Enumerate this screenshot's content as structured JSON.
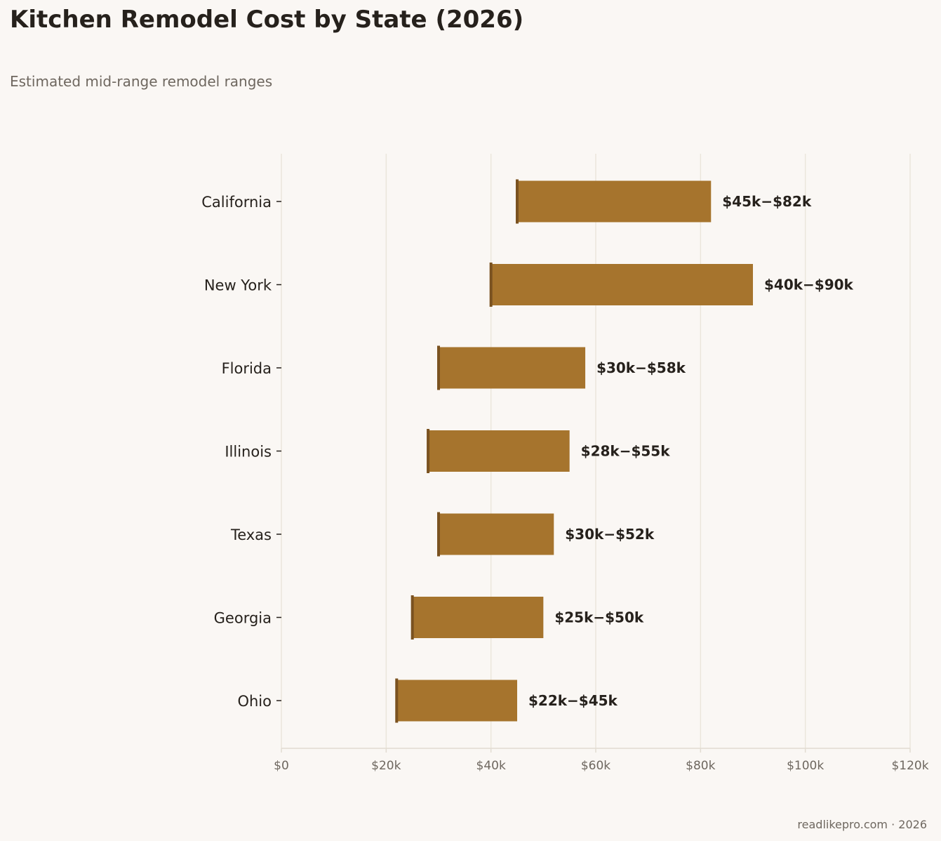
{
  "page": {
    "title": "Kitchen Remodel Cost by State (2026)",
    "subtitle": "Estimated mid-range remodel ranges",
    "footer": "readlikepro.com · 2026"
  },
  "chart_data": {
    "type": "bar",
    "orientation": "horizontal",
    "subtype": "floating-range",
    "title": "Kitchen Remodel Cost by State (2026)",
    "subtitle": "Estimated mid-range remodel ranges",
    "xlabel": "",
    "ylabel": "",
    "categories": [
      "California",
      "New York",
      "Florida",
      "Illinois",
      "Texas",
      "Georgia",
      "Ohio"
    ],
    "series": [
      {
        "name": "",
        "low": [
          45000,
          40000,
          30000,
          28000,
          30000,
          25000,
          22000
        ],
        "high": [
          82000,
          90000,
          58000,
          55000,
          52000,
          50000,
          45000
        ]
      }
    ],
    "data_labels": [
      "$45k−$82k",
      "$40k−$90k",
      "$30k−$58k",
      "$28k−$55k",
      "$30k−$52k",
      "$25k−$50k",
      "$22k−$45k"
    ],
    "xlim": [
      0,
      120000
    ],
    "xticks": [
      0,
      20000,
      40000,
      60000,
      80000,
      100000,
      120000
    ],
    "xtick_labels": [
      "$0",
      "$20k",
      "$40k",
      "$60k",
      "$80k",
      "$100k",
      "$120k"
    ],
    "grid": "vertical",
    "legend": "none",
    "colors": {
      "bar": "#a6742d",
      "bar_start_marker": "#7a5220",
      "grid": "#ebe6dc",
      "axis": "#e2dcd2",
      "background": "#faf7f4"
    }
  }
}
